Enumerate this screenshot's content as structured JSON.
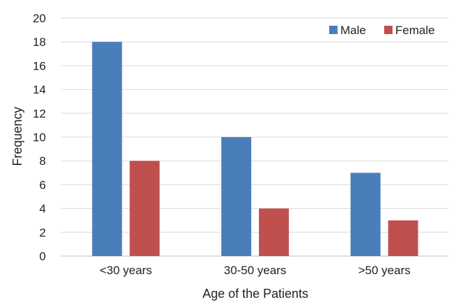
{
  "chart_data": {
    "type": "bar",
    "title": "",
    "xlabel": "Age of the Patients",
    "ylabel": "Frequency",
    "ylim": [
      0,
      20
    ],
    "yticks": [
      0,
      2,
      4,
      6,
      8,
      10,
      12,
      14,
      16,
      18,
      20
    ],
    "categories": [
      "<30 years",
      "30-50 years",
      ">50 years"
    ],
    "series": [
      {
        "name": "Male",
        "values": [
          18,
          10,
          7
        ],
        "color": "#4a7ebb"
      },
      {
        "name": "Female",
        "values": [
          8,
          4,
          3
        ],
        "color": "#c0504d"
      }
    ],
    "grid": true,
    "legend_position": "top-right"
  }
}
